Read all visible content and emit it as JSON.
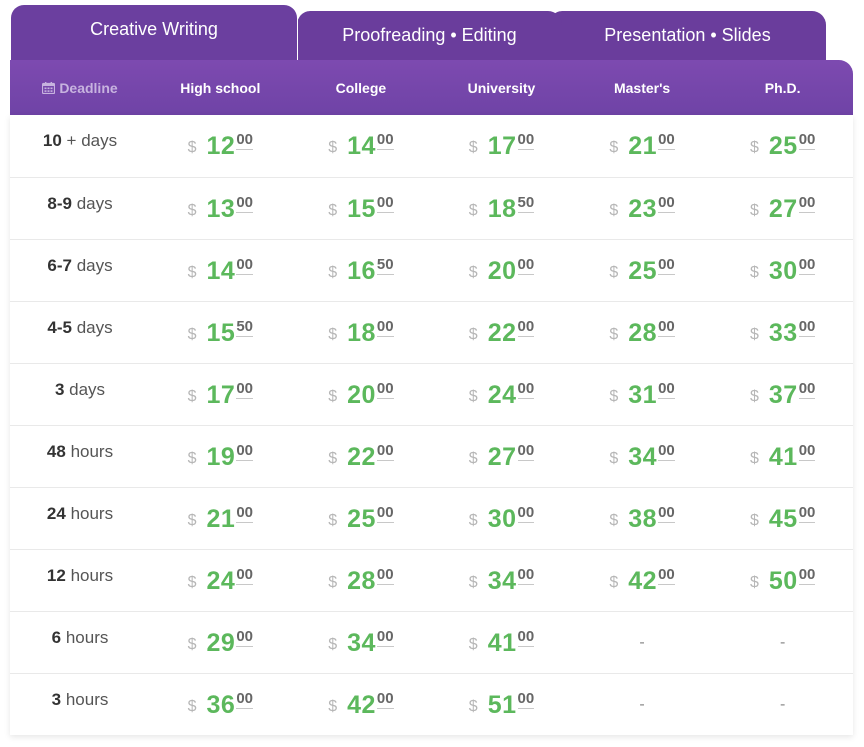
{
  "tabs": [
    {
      "label": "Creative Writing",
      "active": true
    },
    {
      "label": "Proofreading • Editing",
      "active": false
    },
    {
      "label": "Presentation • Slides",
      "active": false
    }
  ],
  "header": {
    "deadline_label": "Deadline",
    "deadline_icon": "calendar-icon",
    "levels": [
      "High school",
      "College",
      "University",
      "Master's",
      "Ph.D."
    ]
  },
  "currency": "$",
  "accent_color": "#5cb85c",
  "tab_color": "#6a3d9c",
  "rows": [
    {
      "num": "10",
      "unit": "+ days",
      "prices": [
        [
          "12",
          "00"
        ],
        [
          "14",
          "00"
        ],
        [
          "17",
          "00"
        ],
        [
          "21",
          "00"
        ],
        [
          "25",
          "00"
        ]
      ]
    },
    {
      "num": "8-9",
      "unit": "days",
      "prices": [
        [
          "13",
          "00"
        ],
        [
          "15",
          "00"
        ],
        [
          "18",
          "50"
        ],
        [
          "23",
          "00"
        ],
        [
          "27",
          "00"
        ]
      ]
    },
    {
      "num": "6-7",
      "unit": "days",
      "prices": [
        [
          "14",
          "00"
        ],
        [
          "16",
          "50"
        ],
        [
          "20",
          "00"
        ],
        [
          "25",
          "00"
        ],
        [
          "30",
          "00"
        ]
      ]
    },
    {
      "num": "4-5",
      "unit": "days",
      "prices": [
        [
          "15",
          "50"
        ],
        [
          "18",
          "00"
        ],
        [
          "22",
          "00"
        ],
        [
          "28",
          "00"
        ],
        [
          "33",
          "00"
        ]
      ]
    },
    {
      "num": "3",
      "unit": "days",
      "prices": [
        [
          "17",
          "00"
        ],
        [
          "20",
          "00"
        ],
        [
          "24",
          "00"
        ],
        [
          "31",
          "00"
        ],
        [
          "37",
          "00"
        ]
      ]
    },
    {
      "num": "48",
      "unit": "hours",
      "prices": [
        [
          "19",
          "00"
        ],
        [
          "22",
          "00"
        ],
        [
          "27",
          "00"
        ],
        [
          "34",
          "00"
        ],
        [
          "41",
          "00"
        ]
      ]
    },
    {
      "num": "24",
      "unit": "hours",
      "prices": [
        [
          "21",
          "00"
        ],
        [
          "25",
          "00"
        ],
        [
          "30",
          "00"
        ],
        [
          "38",
          "00"
        ],
        [
          "45",
          "00"
        ]
      ]
    },
    {
      "num": "12",
      "unit": "hours",
      "prices": [
        [
          "24",
          "00"
        ],
        [
          "28",
          "00"
        ],
        [
          "34",
          "00"
        ],
        [
          "42",
          "00"
        ],
        [
          "50",
          "00"
        ]
      ]
    },
    {
      "num": "6",
      "unit": "hours",
      "prices": [
        [
          "29",
          "00"
        ],
        [
          "34",
          "00"
        ],
        [
          "41",
          "00"
        ],
        "-",
        "-"
      ]
    },
    {
      "num": "3",
      "unit": "hours",
      "prices": [
        [
          "36",
          "00"
        ],
        [
          "42",
          "00"
        ],
        [
          "51",
          "00"
        ],
        "-",
        "-"
      ]
    }
  ]
}
